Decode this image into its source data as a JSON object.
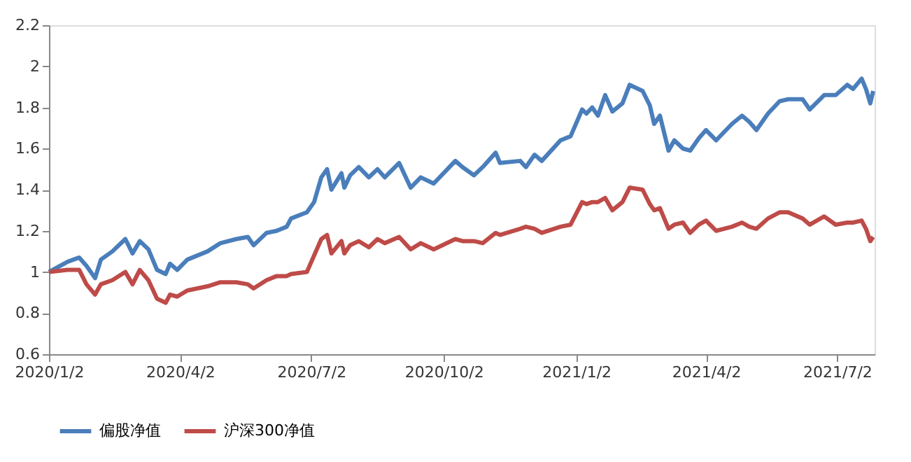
{
  "chart_data": {
    "type": "line",
    "x": [
      "2020-01-02",
      "2020-01-15",
      "2020-01-23",
      "2020-01-28",
      "2020-02-03",
      "2020-02-07",
      "2020-02-15",
      "2020-02-24",
      "2020-02-29",
      "2020-03-05",
      "2020-03-11",
      "2020-03-17",
      "2020-03-23",
      "2020-03-26",
      "2020-03-31",
      "2020-04-07",
      "2020-04-21",
      "2020-04-30",
      "2020-05-11",
      "2020-05-19",
      "2020-05-23",
      "2020-06-01",
      "2020-06-08",
      "2020-06-15",
      "2020-06-18",
      "2020-06-29",
      "2020-07-04",
      "2020-07-09",
      "2020-07-13",
      "2020-07-16",
      "2020-07-23",
      "2020-07-25",
      "2020-07-29",
      "2020-08-04",
      "2020-08-11",
      "2020-08-17",
      "2020-08-22",
      "2020-09-01",
      "2020-09-09",
      "2020-09-16",
      "2020-09-25",
      "2020-10-10",
      "2020-10-15",
      "2020-10-23",
      "2020-10-29",
      "2020-11-07",
      "2020-11-10",
      "2020-11-24",
      "2020-11-28",
      "2020-12-04",
      "2020-12-09",
      "2020-12-22",
      "2020-12-29",
      "2021-01-06",
      "2021-01-09",
      "2021-01-13",
      "2021-01-17",
      "2021-01-22",
      "2021-01-27",
      "2021-02-03",
      "2021-02-08",
      "2021-02-17",
      "2021-02-22",
      "2021-02-25",
      "2021-03-01",
      "2021-03-07",
      "2021-03-11",
      "2021-03-17",
      "2021-03-22",
      "2021-03-28",
      "2021-04-02",
      "2021-04-09",
      "2021-04-20",
      "2021-04-27",
      "2021-05-02",
      "2021-05-07",
      "2021-05-15",
      "2021-05-23",
      "2021-05-29",
      "2021-06-08",
      "2021-06-13",
      "2021-06-23",
      "2021-07-01",
      "2021-07-09",
      "2021-07-13",
      "2021-07-19",
      "2021-07-22",
      "2021-07-25",
      "2021-07-27"
    ],
    "series": [
      {
        "name": "偏股净值",
        "color": "#4a7ebb",
        "values": [
          1.0,
          1.05,
          1.07,
          1.03,
          0.97,
          1.06,
          1.1,
          1.16,
          1.09,
          1.15,
          1.11,
          1.01,
          0.99,
          1.04,
          1.01,
          1.06,
          1.1,
          1.14,
          1.16,
          1.17,
          1.13,
          1.19,
          1.2,
          1.22,
          1.26,
          1.29,
          1.34,
          1.46,
          1.5,
          1.4,
          1.48,
          1.41,
          1.47,
          1.51,
          1.46,
          1.5,
          1.46,
          1.53,
          1.41,
          1.46,
          1.43,
          1.54,
          1.51,
          1.47,
          1.51,
          1.58,
          1.53,
          1.54,
          1.51,
          1.57,
          1.54,
          1.64,
          1.66,
          1.79,
          1.77,
          1.8,
          1.76,
          1.86,
          1.78,
          1.82,
          1.91,
          1.88,
          1.81,
          1.72,
          1.76,
          1.59,
          1.64,
          1.6,
          1.59,
          1.65,
          1.69,
          1.64,
          1.72,
          1.76,
          1.73,
          1.69,
          1.77,
          1.83,
          1.84,
          1.84,
          1.79,
          1.86,
          1.86,
          1.91,
          1.89,
          1.94,
          1.89,
          1.82,
          1.88
        ]
      },
      {
        "name": "沪深300净值",
        "color": "#be4b48",
        "values": [
          1.0,
          1.01,
          1.01,
          0.94,
          0.89,
          0.94,
          0.96,
          1.0,
          0.94,
          1.01,
          0.96,
          0.87,
          0.85,
          0.89,
          0.88,
          0.91,
          0.93,
          0.95,
          0.95,
          0.94,
          0.92,
          0.96,
          0.98,
          0.98,
          0.99,
          1.0,
          1.08,
          1.16,
          1.18,
          1.09,
          1.15,
          1.09,
          1.13,
          1.15,
          1.12,
          1.16,
          1.14,
          1.17,
          1.11,
          1.14,
          1.11,
          1.16,
          1.15,
          1.15,
          1.14,
          1.19,
          1.18,
          1.21,
          1.22,
          1.21,
          1.19,
          1.22,
          1.23,
          1.34,
          1.33,
          1.34,
          1.34,
          1.36,
          1.3,
          1.34,
          1.41,
          1.4,
          1.33,
          1.3,
          1.31,
          1.21,
          1.23,
          1.24,
          1.19,
          1.23,
          1.25,
          1.2,
          1.22,
          1.24,
          1.22,
          1.21,
          1.26,
          1.29,
          1.29,
          1.26,
          1.23,
          1.27,
          1.23,
          1.24,
          1.24,
          1.25,
          1.21,
          1.15,
          1.17
        ]
      }
    ],
    "xlim": [
      "2020-01-02",
      "2021-07-28"
    ],
    "xticks": [
      {
        "value": "2020-01-02",
        "label": "2020/1/2"
      },
      {
        "value": "2020-04-02",
        "label": "2020/4/2"
      },
      {
        "value": "2020-07-02",
        "label": "2020/7/2"
      },
      {
        "value": "2020-10-02",
        "label": "2020/10/2"
      },
      {
        "value": "2021-01-02",
        "label": "2021/1/2"
      },
      {
        "value": "2021-04-02",
        "label": "2021/4/2"
      },
      {
        "value": "2021-07-02",
        "label": "2021/7/2"
      }
    ],
    "ylim": [
      0.6,
      2.2
    ],
    "yticks": [
      0.6,
      0.8,
      1,
      1.2,
      1.4,
      1.6,
      1.8,
      2,
      2.2
    ],
    "grid": false,
    "legend": "bottom",
    "marker": "none",
    "line_style": "solid"
  }
}
